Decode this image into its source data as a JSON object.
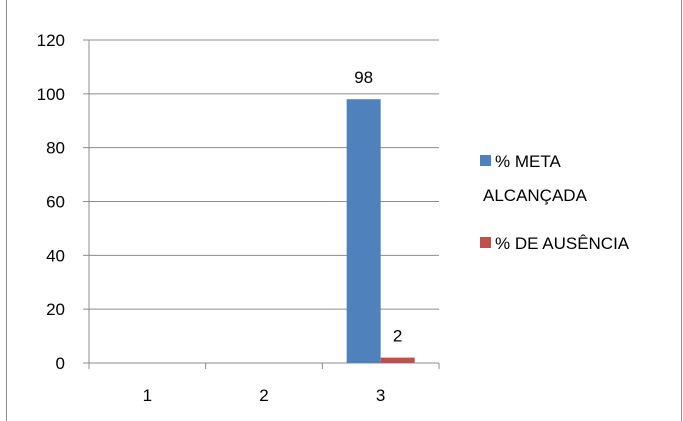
{
  "chart_data": {
    "type": "bar",
    "title": "",
    "xlabel": "",
    "ylabel": "",
    "categories": [
      "1",
      "2",
      "3"
    ],
    "series": [
      {
        "name": "% META ALCANÇADA",
        "color": "#4f81bd",
        "values": [
          null,
          null,
          98
        ],
        "labels": [
          "",
          "",
          "98"
        ]
      },
      {
        "name": "% DE AUSÊNCIA",
        "color": "#c0504d",
        "values": [
          null,
          null,
          2
        ],
        "labels": [
          "",
          "",
          "2"
        ]
      }
    ],
    "ylim": [
      0,
      120
    ],
    "yticks": [
      0,
      20,
      40,
      60,
      80,
      100,
      120
    ],
    "grid": true,
    "legend_position": "right"
  }
}
